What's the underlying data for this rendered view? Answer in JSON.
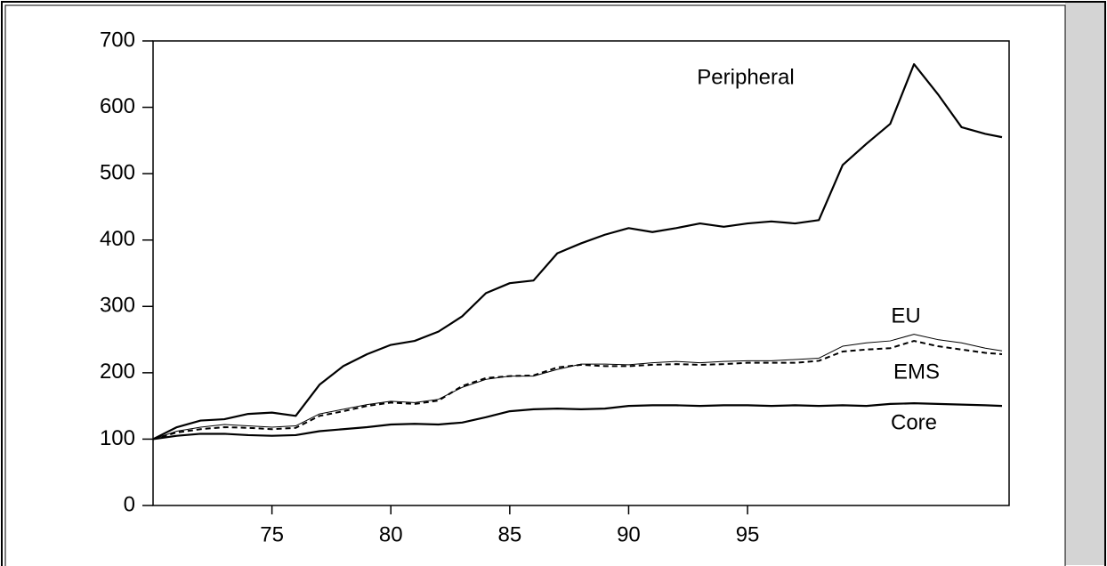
{
  "chart_data": {
    "type": "line",
    "x": [
      70,
      71,
      72,
      73,
      74,
      75,
      76,
      77,
      78,
      79,
      80,
      81,
      82,
      83,
      84,
      85,
      86,
      87,
      88,
      89,
      90,
      91,
      92,
      93,
      94,
      95,
      96,
      97,
      98,
      99,
      100,
      101,
      102,
      103,
      104,
      105,
      105.7
    ],
    "xlim": [
      70,
      106
    ],
    "xticks": [
      75,
      80,
      85,
      90,
      95
    ],
    "ylim": [
      0,
      700
    ],
    "yticks": [
      0,
      100,
      200,
      300,
      400,
      500,
      600,
      700
    ],
    "series": [
      {
        "name": "Peripheral",
        "color": "#000000",
        "values": [
          100,
          118,
          128,
          130,
          138,
          140,
          135,
          182,
          210,
          228,
          242,
          248,
          262,
          285,
          320,
          335,
          339,
          380,
          395,
          408,
          418,
          412,
          418,
          425,
          420,
          425,
          428,
          425,
          430,
          513,
          545,
          575,
          665,
          620,
          570,
          560,
          555
        ]
      },
      {
        "name": "EU",
        "color": "#000000",
        "values": [
          100,
          112,
          118,
          122,
          120,
          118,
          120,
          138,
          145,
          152,
          157,
          155,
          160,
          178,
          190,
          195,
          195,
          205,
          213,
          213,
          212,
          215,
          217,
          215,
          217,
          218,
          218,
          220,
          222,
          240,
          245,
          248,
          258,
          250,
          245,
          237,
          233
        ]
      },
      {
        "name": "EMS",
        "color": "#000000",
        "values": [
          100,
          110,
          115,
          118,
          117,
          115,
          117,
          135,
          142,
          150,
          155,
          153,
          158,
          180,
          192,
          195,
          196,
          208,
          212,
          210,
          210,
          212,
          213,
          212,
          213,
          215,
          215,
          215,
          218,
          232,
          235,
          237,
          248,
          240,
          235,
          230,
          228
        ]
      },
      {
        "name": "Core",
        "color": "#000000",
        "values": [
          100,
          105,
          108,
          108,
          106,
          105,
          106,
          112,
          115,
          118,
          122,
          123,
          122,
          125,
          133,
          142,
          145,
          146,
          145,
          146,
          150,
          151,
          151,
          150,
          151,
          151,
          150,
          151,
          150,
          151,
          150,
          153,
          154,
          153,
          152,
          151,
          150
        ]
      }
    ]
  }
}
